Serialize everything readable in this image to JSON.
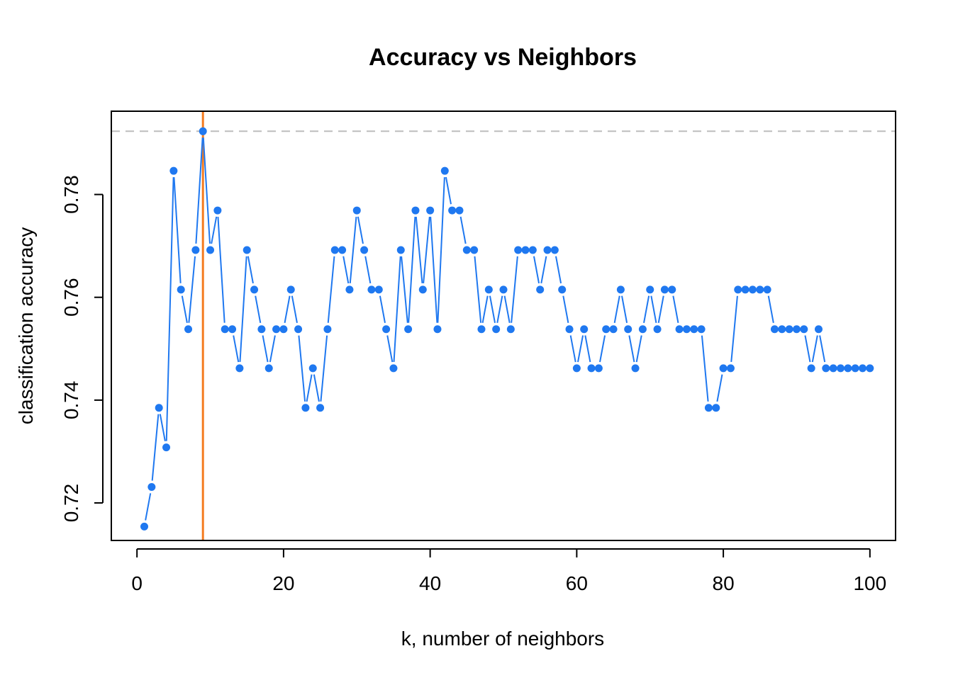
{
  "chart_data": {
    "type": "line",
    "title": "Accuracy vs Neighbors",
    "xlabel": "k, number of neighbors",
    "ylabel": "classification accuracy",
    "xlim": [
      -3.5,
      103.5
    ],
    "ylim": [
      0.7127,
      0.7962
    ],
    "xticks": [
      0,
      20,
      40,
      60,
      80,
      100
    ],
    "yticks": [
      0.72,
      0.74,
      0.76,
      0.78
    ],
    "xtick_labels": [
      "0",
      "20",
      "40",
      "60",
      "80",
      "100"
    ],
    "ytick_labels": [
      "0.72",
      "0.74",
      "0.76",
      "0.78"
    ],
    "plot_type": "both points and lines (type='b')",
    "series": [
      {
        "color": "#1f78f0",
        "x": [
          1,
          2,
          3,
          4,
          5,
          6,
          7,
          8,
          9,
          10,
          11,
          12,
          13,
          14,
          15,
          16,
          17,
          18,
          19,
          20,
          21,
          22,
          23,
          24,
          25,
          26,
          27,
          28,
          29,
          30,
          31,
          32,
          33,
          34,
          35,
          36,
          37,
          38,
          39,
          40,
          41,
          42,
          43,
          44,
          45,
          46,
          47,
          48,
          49,
          50,
          51,
          52,
          53,
          54,
          55,
          56,
          57,
          58,
          59,
          60,
          61,
          62,
          63,
          64,
          65,
          66,
          67,
          68,
          69,
          70,
          71,
          72,
          73,
          74,
          75,
          76,
          77,
          78,
          79,
          80,
          81,
          82,
          83,
          84,
          85,
          86,
          87,
          88,
          89,
          90,
          91,
          92,
          93,
          94,
          95,
          96,
          97,
          98,
          99,
          100
        ],
        "values": [
          0.7154,
          0.7231,
          0.7385,
          0.7308,
          0.7846,
          0.7615,
          0.7538,
          0.7692,
          0.7923,
          0.7692,
          0.7769,
          0.7538,
          0.7538,
          0.7462,
          0.7692,
          0.7615,
          0.7538,
          0.7462,
          0.7538,
          0.7538,
          0.7615,
          0.7538,
          0.7385,
          0.7462,
          0.7385,
          0.7538,
          0.7692,
          0.7692,
          0.7615,
          0.7769,
          0.7692,
          0.7615,
          0.7615,
          0.7538,
          0.7462,
          0.7692,
          0.7538,
          0.7769,
          0.7615,
          0.7769,
          0.7538,
          0.7846,
          0.7769,
          0.7769,
          0.7692,
          0.7692,
          0.7538,
          0.7615,
          0.7538,
          0.7615,
          0.7538,
          0.7692,
          0.7692,
          0.7692,
          0.7615,
          0.7692,
          0.7692,
          0.7615,
          0.7538,
          0.7462,
          0.7538,
          0.7462,
          0.7462,
          0.7538,
          0.7538,
          0.7615,
          0.7538,
          0.7462,
          0.7538,
          0.7615,
          0.7538,
          0.7615,
          0.7615,
          0.7538,
          0.7538,
          0.7538,
          0.7538,
          0.7385,
          0.7385,
          0.7462,
          0.7462,
          0.7615,
          0.7615,
          0.7615,
          0.7615,
          0.7615,
          0.7538,
          0.7538,
          0.7538,
          0.7538,
          0.7538,
          0.7462,
          0.7538,
          0.7462,
          0.7462,
          0.7462,
          0.7462,
          0.7462,
          0.7462,
          0.7462
        ]
      }
    ],
    "reference_line": {
      "orientation": "horizontal",
      "y": 0.7923,
      "style": "dashed",
      "color": "#bdbdbd"
    },
    "best_k_line": {
      "orientation": "vertical",
      "x": 9,
      "color": "#f47c20"
    },
    "grid": false,
    "legend": "none"
  }
}
